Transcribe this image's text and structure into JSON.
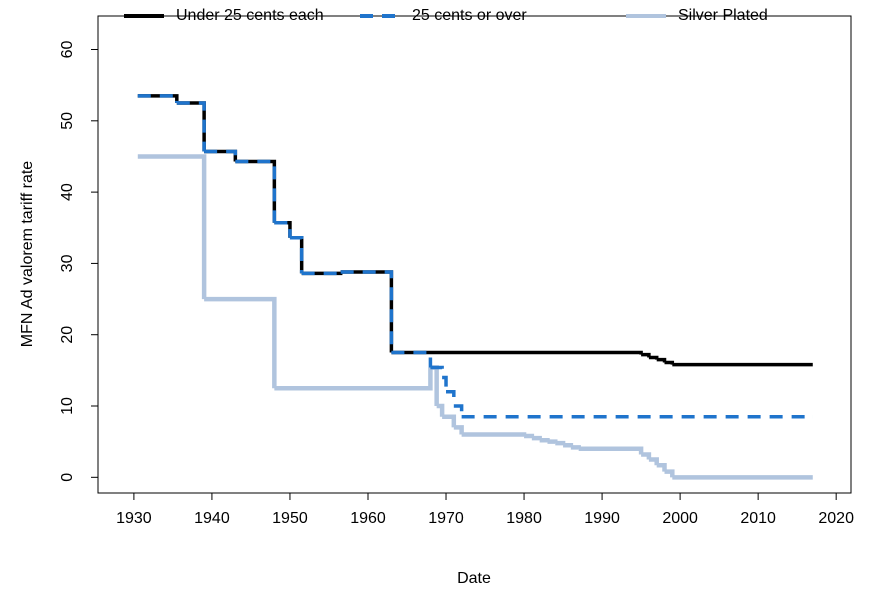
{
  "chart_data": {
    "type": "step",
    "xlabel": "Date",
    "ylabel": "MFN Ad valorem tariff rate",
    "xlim": [
      1925.4,
      2021.9
    ],
    "ylim": [
      -2.2,
      64.7
    ],
    "xticks": [
      1930,
      1940,
      1950,
      1960,
      1970,
      1980,
      1990,
      2000,
      2010,
      2020
    ],
    "yticks": [
      0,
      10,
      20,
      30,
      40,
      50,
      60
    ],
    "legend": "top",
    "series": [
      {
        "name": "Silver Plated",
        "color": "#b0c4de",
        "dash": false,
        "x": [
          1930.5,
          1939,
          1948,
          1968,
          1968.8,
          1969.5,
          1971,
          1972,
          1980,
          1981,
          1982,
          1983,
          1984,
          1985,
          1986,
          1987,
          1995,
          1996,
          1997,
          1998,
          1999,
          2017
        ],
        "values": [
          45,
          25,
          12.5,
          15.4,
          10,
          8.5,
          7,
          6,
          5.8,
          5.5,
          5.2,
          5,
          4.8,
          4.5,
          4.2,
          4,
          3.2,
          2.5,
          1.7,
          0.8,
          0,
          0
        ]
      },
      {
        "name": "Under 25 cents each",
        "color": "#000000",
        "dash": false,
        "x": [
          1930.5,
          1935.5,
          1939,
          1943,
          1948,
          1950,
          1951.5,
          1956.5,
          1963,
          1995,
          1996,
          1997,
          1998,
          1999,
          2017
        ],
        "values": [
          53.5,
          52.5,
          45.7,
          44.3,
          35.7,
          33.6,
          28.6,
          28.8,
          17.5,
          17.2,
          16.8,
          16.5,
          16.1,
          15.8,
          15.8
        ]
      },
      {
        "name": "25 cents or over",
        "color": "#1f74cc",
        "dash": true,
        "x": [
          1930.5,
          1935.5,
          1939,
          1943,
          1948,
          1950,
          1951.5,
          1956.5,
          1963,
          1968,
          1969.5,
          1970,
          1971,
          1972,
          2017
        ],
        "values": [
          53.5,
          52.5,
          45.7,
          44.3,
          35.7,
          33.6,
          28.6,
          28.8,
          17.5,
          15.4,
          14,
          12,
          10,
          8.5,
          8.5
        ]
      }
    ]
  }
}
